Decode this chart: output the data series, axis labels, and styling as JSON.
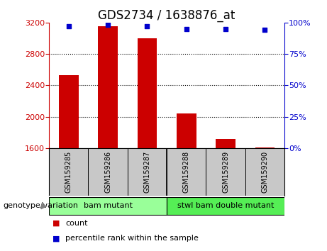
{
  "title": "GDS2734 / 1638876_at",
  "samples": [
    "GSM159285",
    "GSM159286",
    "GSM159287",
    "GSM159288",
    "GSM159289",
    "GSM159290"
  ],
  "counts": [
    2530,
    3150,
    3000,
    2040,
    1720,
    1610
  ],
  "percentile_ranks": [
    97,
    98,
    97,
    95,
    95,
    94
  ],
  "ylim_left": [
    1600,
    3200
  ],
  "ylim_right": [
    0,
    100
  ],
  "yticks_left": [
    1600,
    2000,
    2400,
    2800,
    3200
  ],
  "yticks_right": [
    0,
    25,
    50,
    75,
    100
  ],
  "bar_color": "#cc0000",
  "dot_color": "#0000cc",
  "groups": [
    {
      "label": "bam mutant",
      "samples": [
        0,
        1,
        2
      ],
      "color": "#99ff99"
    },
    {
      "label": "stwl bam double mutant",
      "samples": [
        3,
        4,
        5
      ],
      "color": "#55ee55"
    }
  ],
  "group_label": "genotype/variation",
  "legend_items": [
    {
      "label": "count",
      "color": "#cc0000"
    },
    {
      "label": "percentile rank within the sample",
      "color": "#0000cc"
    }
  ],
  "background_plot": "#ffffff",
  "background_samples": "#c8c8c8",
  "title_fontsize": 12,
  "tick_fontsize": 8,
  "sample_fontsize": 7,
  "group_fontsize": 8,
  "legend_fontsize": 8
}
